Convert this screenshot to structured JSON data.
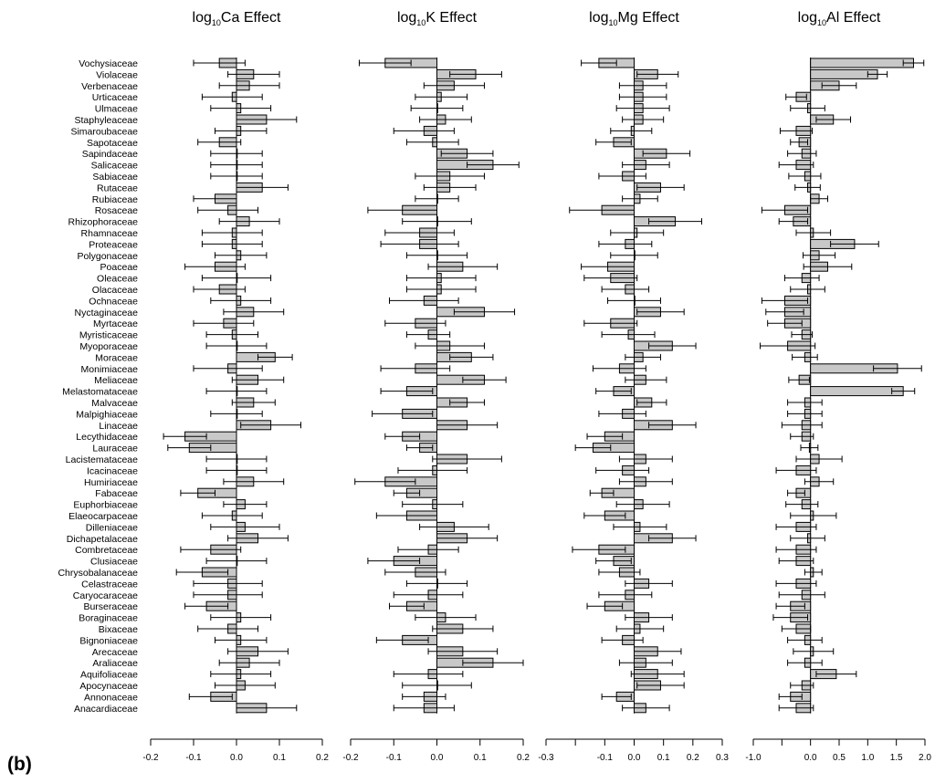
{
  "figure": {
    "panel_label": "(b)"
  },
  "chart_data": {
    "type": "bar",
    "families": [
      "Vochysiaceae",
      "Violaceae",
      "Verbenaceae",
      "Urticaceae",
      "Ulmaceae",
      "Staphyleaceae",
      "Simaroubaceae",
      "Sapotaceae",
      "Sapindaceae",
      "Salicaceae",
      "Sabiaceae",
      "Rutaceae",
      "Rubiaceae",
      "Rosaceae",
      "Rhizophoraceae",
      "Rhamnaceae",
      "Proteaceae",
      "Polygonaceae",
      "Poaceae",
      "Oleaceae",
      "Olacaceae",
      "Ochnaceae",
      "Nyctaginaceae",
      "Myrtaceae",
      "Myristicaceae",
      "Myoporaceae",
      "Moraceae",
      "Monimiaceae",
      "Meliaceae",
      "Melastomataceae",
      "Malvaceae",
      "Malpighiaceae",
      "Linaceae",
      "Lecythidaceae",
      "Lauraceae",
      "Lacistemataceae",
      "Icacinaceae",
      "Humiriaceae",
      "Fabaceae",
      "Euphorbiaceae",
      "Elaeocarpaceae",
      "Dilleniaceae",
      "Dichapetalaceae",
      "Combretaceae",
      "Clusiaceae",
      "Chrysobalanaceae",
      "Celastraceae",
      "Caryocaraceae",
      "Burseraceae",
      "Boraginaceae",
      "Bixaceae",
      "Bignoniaceae",
      "Arecaceae",
      "Araliaceae",
      "Aquifoliaceae",
      "Apocynaceae",
      "Annonaceae",
      "Anacardiaceae"
    ],
    "panels": [
      {
        "title_pre": "log",
        "title_sub": "10",
        "title_post": "Ca Effect",
        "xlim": [
          -0.2,
          0.2
        ],
        "ticks": [
          -0.2,
          -0.1,
          0.0,
          0.1,
          0.2
        ],
        "tick_labels": [
          "-0.2",
          "-0.1",
          "0.0",
          "0.1",
          "0.2"
        ],
        "values": [
          -0.04,
          0.04,
          0.03,
          -0.01,
          0.01,
          0.07,
          0.01,
          -0.04,
          0.0,
          0.0,
          0.0,
          0.06,
          -0.05,
          -0.02,
          0.03,
          -0.01,
          -0.01,
          0.01,
          -0.05,
          0.0,
          -0.04,
          0.01,
          0.04,
          -0.03,
          -0.01,
          0.0,
          0.09,
          -0.02,
          0.05,
          0.0,
          0.04,
          0.0,
          0.08,
          -0.12,
          -0.11,
          0.0,
          0.0,
          0.04,
          -0.09,
          0.02,
          -0.01,
          0.02,
          0.05,
          -0.06,
          0.0,
          -0.08,
          -0.02,
          -0.02,
          -0.07,
          0.01,
          -0.02,
          0.01,
          0.05,
          0.03,
          0.01,
          0.02,
          -0.06,
          0.07
        ],
        "errors": [
          0.06,
          0.06,
          0.07,
          0.07,
          0.07,
          0.07,
          0.06,
          0.05,
          0.06,
          0.06,
          0.06,
          0.06,
          0.05,
          0.07,
          0.07,
          0.07,
          0.07,
          0.06,
          0.07,
          0.08,
          0.06,
          0.07,
          0.07,
          0.07,
          0.06,
          0.07,
          0.04,
          0.08,
          0.06,
          0.07,
          0.05,
          0.06,
          0.07,
          0.05,
          0.05,
          0.07,
          0.07,
          0.07,
          0.04,
          0.05,
          0.07,
          0.08,
          0.07,
          0.07,
          0.07,
          0.06,
          0.08,
          0.08,
          0.05,
          0.07,
          0.07,
          0.06,
          0.07,
          0.07,
          0.07,
          0.07,
          0.05,
          0.07
        ]
      },
      {
        "title_pre": "log",
        "title_sub": "10",
        "title_post": "K Effect",
        "xlim": [
          -0.2,
          0.2
        ],
        "ticks": [
          -0.2,
          -0.1,
          0.0,
          0.1,
          0.2
        ],
        "tick_labels": [
          "-0.2",
          "-0.1",
          "0.0",
          "0.1",
          "0.2"
        ],
        "values": [
          -0.12,
          0.09,
          0.04,
          0.01,
          0.0,
          0.02,
          -0.03,
          -0.01,
          0.07,
          0.13,
          0.03,
          0.03,
          0.0,
          -0.08,
          0.0,
          -0.04,
          -0.04,
          0.0,
          0.06,
          0.01,
          0.01,
          -0.03,
          0.11,
          -0.05,
          -0.02,
          0.03,
          0.08,
          -0.05,
          0.11,
          -0.07,
          0.07,
          -0.08,
          0.07,
          -0.08,
          -0.04,
          0.07,
          -0.01,
          -0.12,
          -0.07,
          -0.01,
          -0.07,
          0.04,
          0.07,
          -0.02,
          -0.1,
          -0.05,
          0.0,
          -0.02,
          -0.07,
          0.02,
          0.06,
          -0.08,
          0.06,
          0.13,
          -0.02,
          0.0,
          -0.03,
          -0.03
        ],
        "errors": [
          0.06,
          0.06,
          0.07,
          0.06,
          0.06,
          0.06,
          0.07,
          0.06,
          0.06,
          0.06,
          0.08,
          0.06,
          0.05,
          0.08,
          0.08,
          0.08,
          0.09,
          0.07,
          0.08,
          0.08,
          0.08,
          0.08,
          0.07,
          0.07,
          0.05,
          0.08,
          0.05,
          0.08,
          0.05,
          0.06,
          0.04,
          0.07,
          0.07,
          0.04,
          0.03,
          0.08,
          0.08,
          0.07,
          0.03,
          0.07,
          0.07,
          0.08,
          0.07,
          0.07,
          0.06,
          0.07,
          0.07,
          0.08,
          0.04,
          0.07,
          0.07,
          0.06,
          0.08,
          0.07,
          0.08,
          0.08,
          0.05,
          0.07
        ]
      },
      {
        "title_pre": "log",
        "title_sub": "10",
        "title_post": "Mg Effect",
        "xlim": [
          -0.3,
          0.3
        ],
        "ticks": [
          -0.3,
          -0.2,
          -0.1,
          0.0,
          0.1,
          0.2,
          0.3
        ],
        "tick_labels": [
          "-0.3",
          "",
          "-0.1",
          "0.0",
          "0.1",
          "0.2",
          "0.3"
        ],
        "values": [
          -0.12,
          0.08,
          0.03,
          0.03,
          0.03,
          0.03,
          -0.01,
          -0.07,
          0.11,
          0.04,
          -0.04,
          0.09,
          0.02,
          -0.11,
          0.14,
          0.01,
          -0.03,
          0.0,
          -0.09,
          -0.08,
          -0.03,
          0.0,
          0.09,
          -0.08,
          -0.02,
          0.13,
          0.03,
          -0.05,
          0.04,
          -0.07,
          0.06,
          -0.04,
          0.13,
          -0.1,
          -0.14,
          0.04,
          -0.04,
          0.04,
          -0.11,
          0.03,
          -0.1,
          0.02,
          0.13,
          -0.12,
          -0.07,
          -0.05,
          0.05,
          -0.03,
          -0.1,
          0.05,
          0.02,
          -0.04,
          0.08,
          0.04,
          0.08,
          0.09,
          -0.06,
          0.04
        ],
        "errors": [
          0.06,
          0.07,
          0.08,
          0.08,
          0.09,
          0.07,
          0.07,
          0.06,
          0.08,
          0.08,
          0.08,
          0.08,
          0.06,
          0.11,
          0.09,
          0.09,
          0.09,
          0.08,
          0.09,
          0.09,
          0.08,
          0.09,
          0.08,
          0.09,
          0.09,
          0.08,
          0.06,
          0.09,
          0.07,
          0.06,
          0.05,
          0.08,
          0.08,
          0.06,
          0.06,
          0.09,
          0.09,
          0.09,
          0.04,
          0.09,
          0.07,
          0.09,
          0.08,
          0.09,
          0.06,
          0.07,
          0.08,
          0.09,
          0.06,
          0.08,
          0.08,
          0.07,
          0.08,
          0.09,
          0.09,
          0.08,
          0.05,
          0.08
        ]
      },
      {
        "title_pre": "log",
        "title_sub": "10",
        "title_post": "Al Effect",
        "xlim": [
          -1.0,
          2.0
        ],
        "ticks": [
          -1.0,
          -0.5,
          0.0,
          0.5,
          1.0,
          1.5,
          2.0
        ],
        "tick_labels": [
          "-1.0",
          "",
          "0.0",
          "0.5",
          "1.0",
          "1.5",
          "2.0"
        ],
        "values": [
          1.8,
          1.17,
          0.5,
          -0.25,
          -0.05,
          0.4,
          -0.25,
          -0.2,
          -0.15,
          -0.25,
          -0.1,
          -0.05,
          0.15,
          -0.45,
          -0.3,
          0.05,
          0.77,
          0.15,
          0.3,
          -0.15,
          -0.05,
          -0.45,
          -0.45,
          -0.45,
          -0.15,
          -0.4,
          -0.1,
          1.52,
          -0.2,
          1.62,
          -0.1,
          -0.1,
          -0.15,
          -0.15,
          -0.02,
          0.15,
          -0.25,
          0.15,
          -0.25,
          -0.15,
          0.05,
          -0.25,
          -0.05,
          -0.25,
          -0.25,
          0.05,
          -0.25,
          -0.15,
          -0.35,
          -0.35,
          -0.25,
          -0.1,
          0.05,
          -0.1,
          0.45,
          -0.15,
          -0.35,
          -0.25
        ],
        "errors": [
          0.18,
          0.17,
          0.3,
          0.18,
          0.3,
          0.3,
          0.28,
          0.15,
          0.25,
          0.3,
          0.28,
          0.22,
          0.15,
          0.4,
          0.25,
          0.3,
          0.42,
          0.28,
          0.42,
          0.3,
          0.3,
          0.4,
          0.33,
          0.3,
          0.18,
          0.48,
          0.22,
          0.42,
          0.18,
          0.2,
          0.3,
          0.3,
          0.35,
          0.2,
          0.15,
          0.4,
          0.35,
          0.25,
          0.15,
          0.28,
          0.4,
          0.35,
          0.3,
          0.35,
          0.3,
          0.15,
          0.35,
          0.4,
          0.25,
          0.3,
          0.25,
          0.3,
          0.35,
          0.3,
          0.35,
          0.2,
          0.2,
          0.3
        ]
      }
    ]
  }
}
